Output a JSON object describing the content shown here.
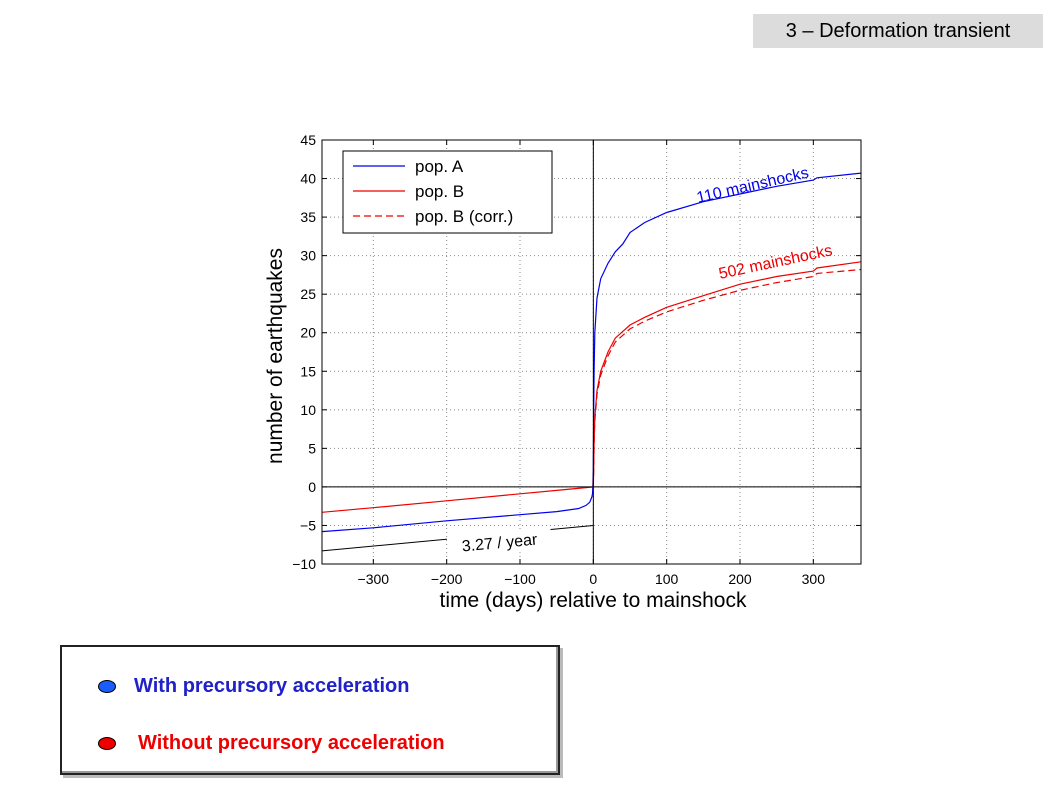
{
  "slide": {
    "title": "3 – Deformation transient"
  },
  "colors": {
    "pop_a": "#0000ee",
    "pop_b": "#ee0000",
    "axis": "#000000",
    "grid": "#8a8a8a"
  },
  "chart_data": {
    "type": "line",
    "xlabel": "time (days) relative to mainshock",
    "ylabel": "number of earthquakes",
    "xlim": [
      -370,
      365
    ],
    "ylim": [
      -10,
      45
    ],
    "xticks": [
      -300,
      -200,
      -100,
      0,
      100,
      200,
      300
    ],
    "xtick_labels": [
      "−300",
      "−200",
      "−100",
      "0",
      "100",
      "200",
      "300"
    ],
    "yticks": [
      -10,
      -5,
      0,
      5,
      10,
      15,
      20,
      25,
      30,
      35,
      40,
      45
    ],
    "ytick_labels": [
      "−10",
      "−5",
      "0",
      "5",
      "10",
      "15",
      "20",
      "25",
      "30",
      "35",
      "40",
      "45"
    ],
    "grid": true,
    "legend_position": "top-left",
    "series": [
      {
        "name": "pop. A",
        "style": "solid",
        "color": "#0000ee",
        "x": [
          -370,
          -300,
          -200,
          -100,
          -50,
          -20,
          -10,
          -5,
          -2,
          -1,
          0,
          0.5,
          1,
          2,
          5,
          10,
          20,
          30,
          40,
          50,
          70,
          100,
          150,
          200,
          250,
          300,
          305,
          365
        ],
        "y": [
          -5.8,
          -5.3,
          -4.4,
          -3.6,
          -3.2,
          -2.8,
          -2.4,
          -2.0,
          -1.3,
          -0.8,
          2.0,
          10.0,
          15.0,
          20.0,
          24.5,
          27.0,
          29.0,
          30.5,
          31.5,
          33.0,
          34.3,
          35.6,
          37.0,
          38.0,
          39.0,
          39.8,
          40.1,
          40.7
        ]
      },
      {
        "name": "pop. B",
        "style": "solid",
        "color": "#ee0000",
        "x": [
          -370,
          -300,
          -200,
          -100,
          -50,
          0,
          0.5,
          1,
          2,
          5,
          10,
          20,
          30,
          50,
          70,
          100,
          150,
          200,
          250,
          300,
          305,
          365
        ],
        "y": [
          -3.3,
          -2.7,
          -1.8,
          -0.9,
          -0.45,
          0,
          2.5,
          6.0,
          9.0,
          12.5,
          15.0,
          17.5,
          19.3,
          21.0,
          22.0,
          23.3,
          24.8,
          26.3,
          27.3,
          28.0,
          28.4,
          29.2
        ]
      },
      {
        "name": "pop. B (corr.)",
        "style": "dashed",
        "color": "#ee0000",
        "x": [
          0,
          0.5,
          1,
          2,
          5,
          10,
          20,
          30,
          50,
          70,
          100,
          150,
          200,
          250,
          300,
          305,
          365
        ],
        "y": [
          0,
          2.2,
          5.5,
          8.5,
          12.0,
          14.5,
          17.0,
          18.8,
          20.5,
          21.5,
          22.7,
          24.2,
          25.5,
          26.5,
          27.3,
          27.7,
          28.2
        ]
      }
    ],
    "reference_line": {
      "x": [
        -370,
        0
      ],
      "y": [
        -8.3,
        -5.0
      ],
      "label": "3.27 / year"
    },
    "annotations": [
      {
        "text": "110 mainshocks",
        "series": "pop. A"
      },
      {
        "text": "502 mainshocks",
        "series": "pop. B"
      }
    ]
  },
  "legend_panel": {
    "items": [
      {
        "label": "With precursory acceleration",
        "color": "#2121c8",
        "dot_color": "#1a5cff"
      },
      {
        "label": "Without precursory acceleration",
        "color": "#ee0000",
        "dot_color": "#ee0000"
      }
    ]
  }
}
